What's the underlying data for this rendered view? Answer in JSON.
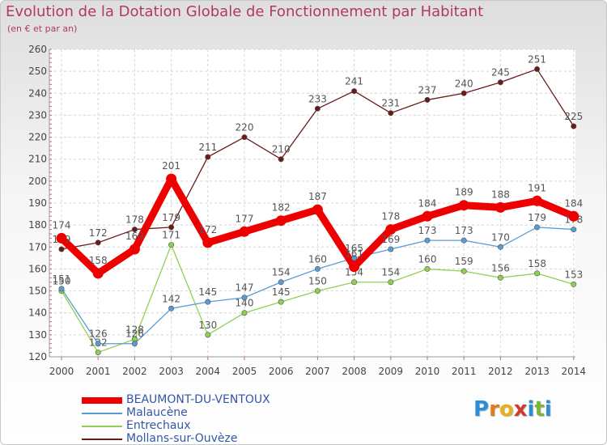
{
  "title": "Evolution de la Dotation Globale de Fonctionnement par Habitant",
  "subtitle": "(en € et par an)",
  "logo": {
    "letters": [
      "P",
      "r",
      "o",
      "x",
      "i",
      "t",
      "i"
    ],
    "colors": [
      "#2a8fd4",
      "#e07a1a",
      "#e8b01c",
      "#d23a2a",
      "#2a8fd4",
      "#7ab43a",
      "#2a8fd4"
    ]
  },
  "chart_data": {
    "type": "line",
    "title": "Evolution de la Dotation Globale de Fonctionnement par Habitant",
    "ylabel": "(en € et par an)",
    "xlabel": "",
    "ylim": [
      120,
      260
    ],
    "yticks": [
      120,
      130,
      140,
      150,
      160,
      170,
      180,
      190,
      200,
      210,
      220,
      230,
      240,
      250,
      260
    ],
    "categories": [
      "2000",
      "2001",
      "2002",
      "2003",
      "2004",
      "2005",
      "2006",
      "2007",
      "2008",
      "2009",
      "2010",
      "2011",
      "2012",
      "2013",
      "2014"
    ],
    "grid": true,
    "legend_position": "bottom-left",
    "series": [
      {
        "name": "Mollans-sur-Ouvèze",
        "color": "#6b1a1a",
        "values": [
          169,
          172,
          178,
          179,
          211,
          220,
          210,
          233,
          241,
          231,
          237,
          240,
          245,
          251,
          225
        ]
      },
      {
        "name": "Entrechaux",
        "color": "#8fd14f",
        "values": [
          150,
          122,
          128,
          171,
          130,
          140,
          145,
          150,
          154,
          154,
          160,
          159,
          156,
          158,
          153
        ]
      },
      {
        "name": "Malaucène",
        "color": "#5b9bd5",
        "values": [
          151,
          126,
          126,
          142,
          145,
          147,
          154,
          160,
          165,
          169,
          173,
          173,
          170,
          179,
          178
        ]
      },
      {
        "name": "BEAUMONT-DU-VENTOUX",
        "color": "#ee0000",
        "values": [
          174,
          158,
          169,
          201,
          172,
          177,
          182,
          187,
          161,
          178,
          184,
          189,
          188,
          191,
          184
        ]
      }
    ]
  }
}
